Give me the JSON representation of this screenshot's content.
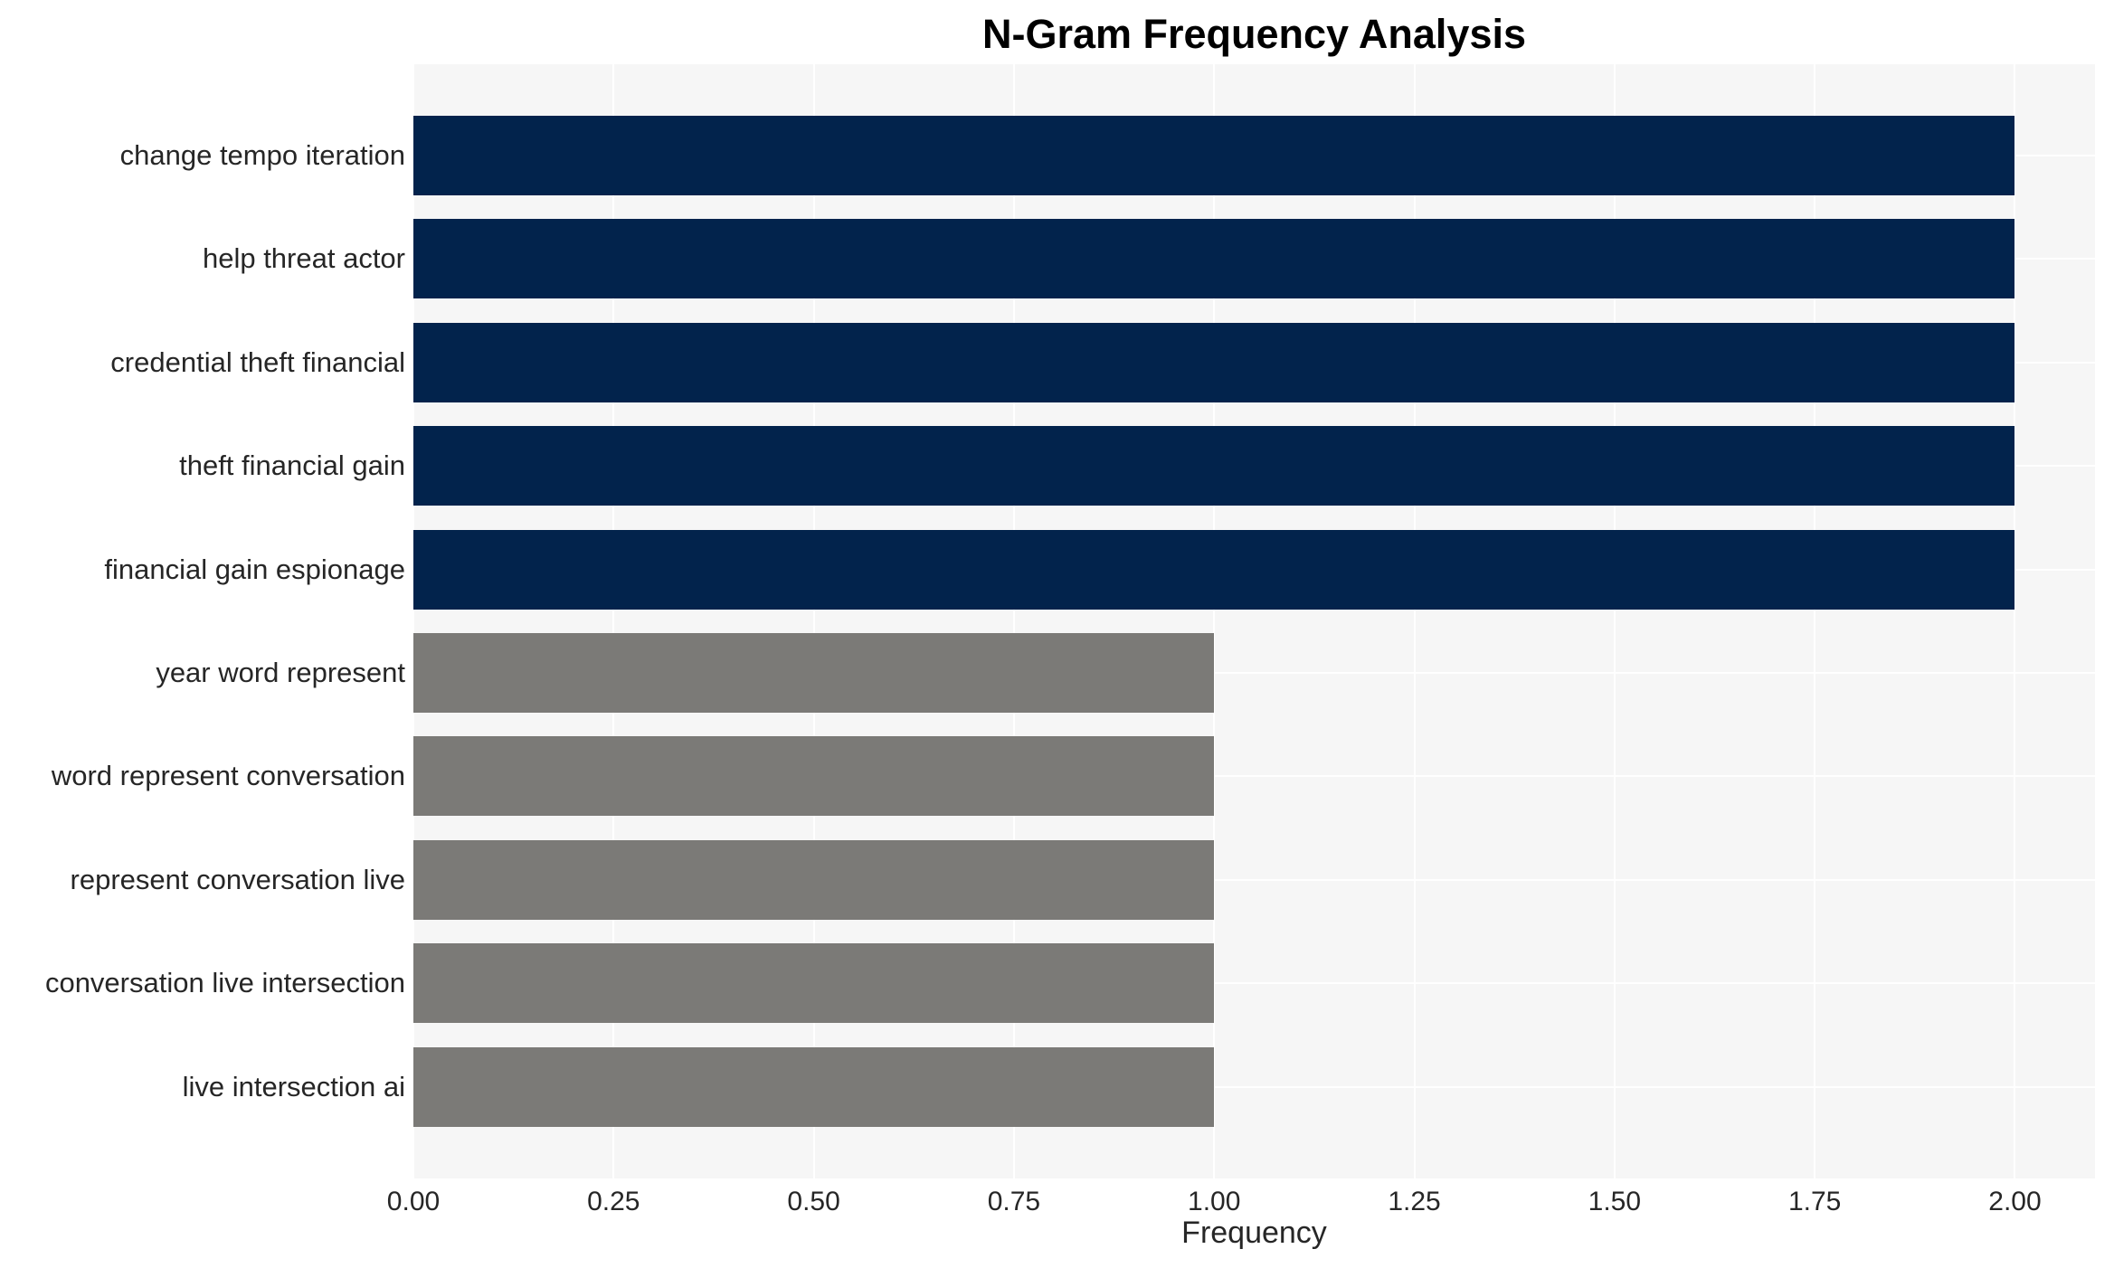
{
  "chart_data": {
    "type": "bar",
    "orientation": "horizontal",
    "title": "N-Gram Frequency Analysis",
    "xlabel": "Frequency",
    "ylabel": "",
    "categories": [
      "change tempo iteration",
      "help threat actor",
      "credential theft financial",
      "theft financial gain",
      "financial gain espionage",
      "year word represent",
      "word represent conversation",
      "represent conversation live",
      "conversation live intersection",
      "live intersection ai"
    ],
    "values": [
      2,
      2,
      2,
      2,
      2,
      1,
      1,
      1,
      1,
      1
    ],
    "bar_colors": [
      "#02234c",
      "#02234c",
      "#02234c",
      "#02234c",
      "#02234c",
      "#7b7a77",
      "#7b7a77",
      "#7b7a77",
      "#7b7a77",
      "#7b7a77"
    ],
    "xlim": [
      0,
      2.1
    ],
    "xtick_values": [
      0,
      0.25,
      0.5,
      0.75,
      1.0,
      1.25,
      1.5,
      1.75,
      2.0
    ],
    "xtick_labels": [
      "0.00",
      "0.25",
      "0.50",
      "0.75",
      "1.00",
      "1.25",
      "1.50",
      "1.75",
      "2.00"
    ],
    "grid": true,
    "legend": null,
    "colors": {
      "plot_background": "#f6f6f6",
      "grid": "#ffffff",
      "text": "#262626",
      "title": "#000000"
    }
  }
}
